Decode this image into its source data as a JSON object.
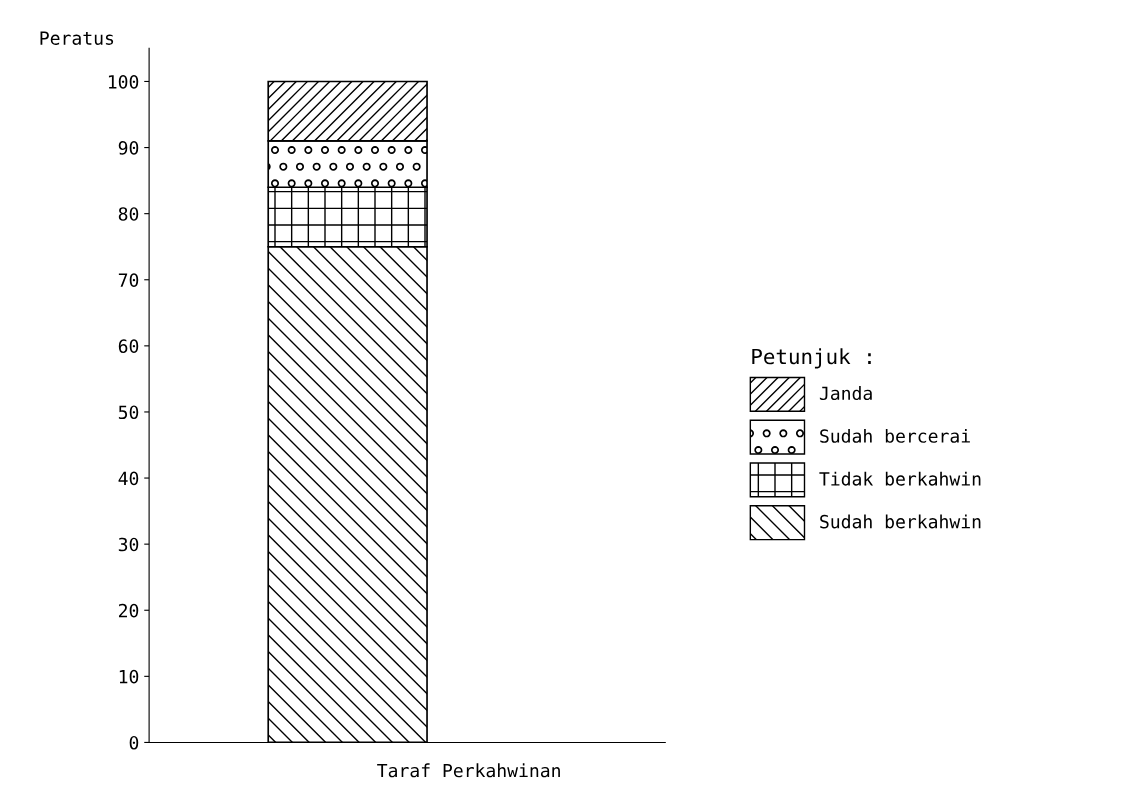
{
  "chart_data": {
    "type": "bar",
    "stacked": true,
    "xlabel": "Taraf Perkahwinan",
    "ylabel": "Peratus",
    "legend_title": "Petunjuk :",
    "categories": [
      null
    ],
    "series": [
      {
        "name": "Sudah berkahwin",
        "color": "#000000",
        "values": [
          75
        ]
      },
      {
        "name": "Tidak berkahwin",
        "color": "#000000",
        "values": [
          9
        ]
      },
      {
        "name": "Sudah bercerai",
        "color": "#000000",
        "values": [
          7
        ]
      },
      {
        "name": "Janda",
        "color": "#000000",
        "values": [
          9
        ]
      }
    ],
    "ylim": [
      0,
      105
    ],
    "yticks": [
      0,
      10,
      20,
      30,
      40,
      50,
      60,
      70,
      80,
      90,
      100
    ],
    "grid": false,
    "legend": "right"
  }
}
